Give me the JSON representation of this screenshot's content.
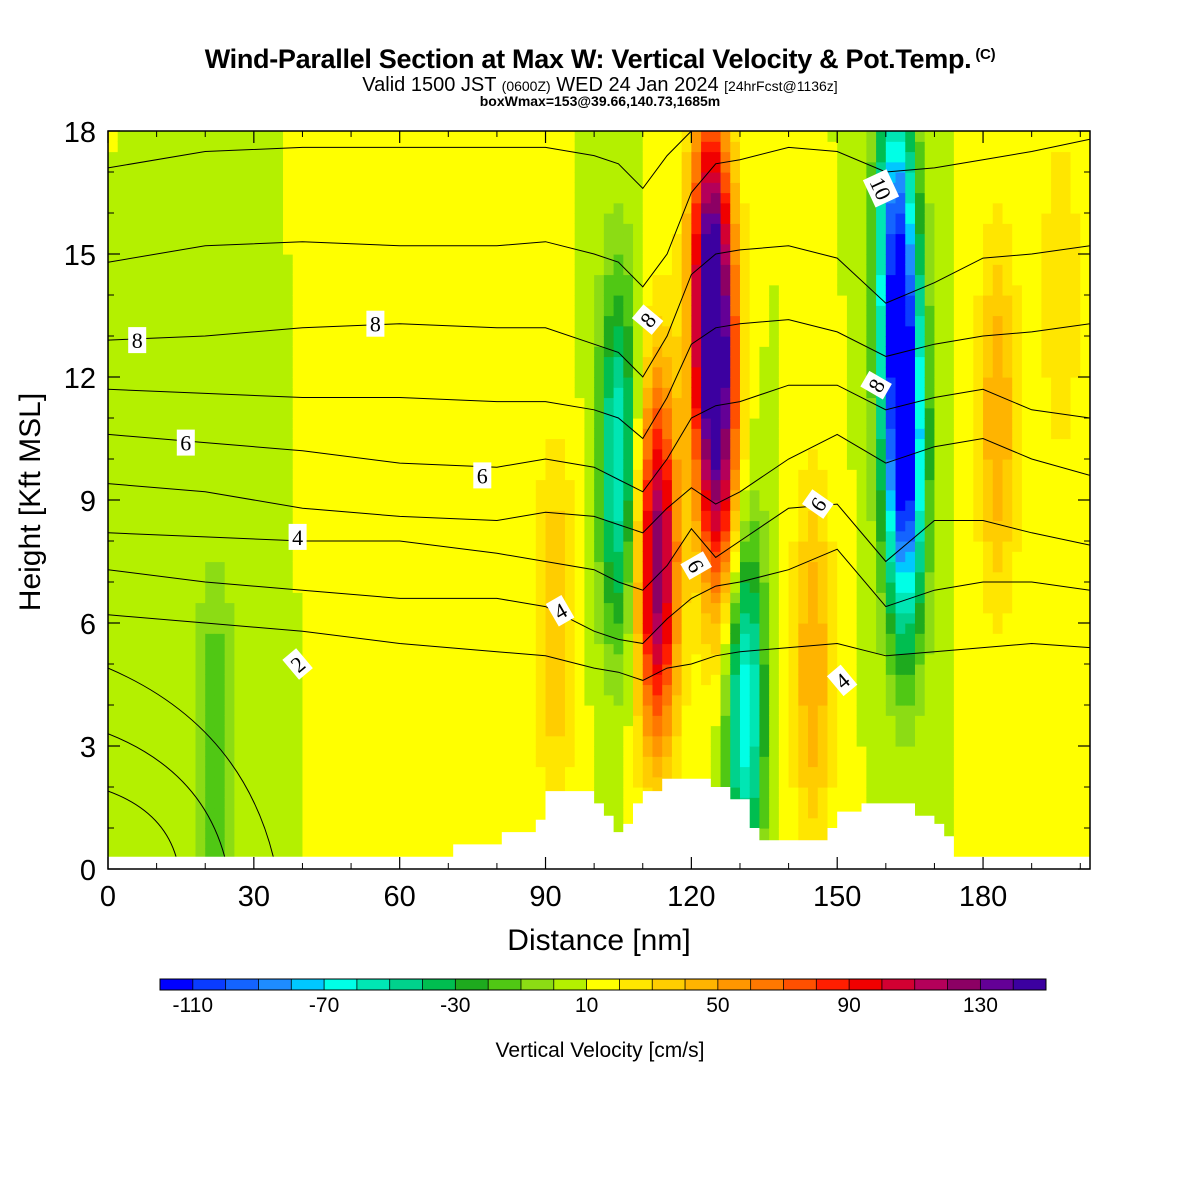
{
  "header": {
    "title": "Wind-Parallel Section at Max W: Vertical Velocity & Pot.Temp.",
    "copyright": "(C)",
    "valid_prefix": "Valid 1500 JST",
    "valid_utc": "(0600Z)",
    "valid_date": "WED 24 Jan 2024",
    "forecast": "[24hrFcst@1136z]",
    "box_info": "boxWmax=153@39.66,140.73,1685m"
  },
  "chart_data": {
    "type": "heatmap",
    "title": "Wind-Parallel Section at Max W: Vertical Velocity & Pot.Temp.",
    "xlabel": "Distance [nm]",
    "ylabel": "Height [Kft MSL]",
    "xlim": [
      0,
      202
    ],
    "ylim": [
      0,
      18
    ],
    "x_ticks": [
      0,
      30,
      60,
      90,
      120,
      150,
      180
    ],
    "y_ticks": [
      0,
      3,
      6,
      9,
      12,
      15,
      18
    ],
    "colorbar": {
      "label": "Vertical Velocity [cm/s]",
      "ticks": [
        -110,
        -70,
        -30,
        10,
        50,
        90,
        130
      ],
      "min": -120,
      "max": 150,
      "step": 10,
      "colors": [
        "#0000ff",
        "#0a3cff",
        "#1464ff",
        "#1e8cff",
        "#00c8ff",
        "#00ffe6",
        "#00e6b4",
        "#00d28c",
        "#00be50",
        "#1eaa1e",
        "#50c814",
        "#8cdc14",
        "#b4f000",
        "#ffff00",
        "#ffe600",
        "#ffcd00",
        "#ffb400",
        "#ff9600",
        "#ff7800",
        "#ff5000",
        "#ff1e00",
        "#f00000",
        "#d20032",
        "#b4005a",
        "#8c0064",
        "#640096",
        "#3c00a0"
      ]
    },
    "w_features": [
      {
        "x": 113,
        "z": 7.5,
        "w": 130
      },
      {
        "x": 124,
        "z": 14,
        "w": 153
      },
      {
        "x": 126,
        "z": 10,
        "w": 90
      },
      {
        "x": 105,
        "z": 10,
        "w": -60
      },
      {
        "x": 131,
        "z": 4,
        "w": -70
      },
      {
        "x": 164,
        "z": 10,
        "w": -110
      },
      {
        "x": 162,
        "z": 15,
        "w": -90
      },
      {
        "x": 92,
        "z": 6,
        "w": 40
      },
      {
        "x": 145,
        "z": 5,
        "w": 50
      },
      {
        "x": 183,
        "z": 11,
        "w": 50
      },
      {
        "x": 196,
        "z": 14,
        "w": 30
      },
      {
        "x": 55,
        "z": 12,
        "w": 20
      },
      {
        "x": 22,
        "z": 3,
        "w": -20
      }
    ],
    "theta_contours": {
      "x": [
        0,
        20,
        40,
        60,
        80,
        90,
        100,
        105,
        110,
        115,
        120,
        125,
        130,
        140,
        150,
        160,
        170,
        180,
        190,
        202
      ],
      "lines": [
        [
          17.1,
          17.5,
          17.6,
          17.6,
          17.6,
          17.6,
          17.4,
          17.2,
          16.6,
          17.4,
          18.0,
          18.0,
          18.0,
          18.0,
          18.0,
          18.0,
          18.0,
          18.0,
          18.0,
          18.0
        ],
        [
          14.8,
          15.2,
          15.3,
          15.2,
          15.2,
          15.3,
          15.0,
          14.8,
          14.2,
          15.0,
          16.5,
          17.2,
          17.3,
          17.6,
          17.5,
          17.0,
          17.1,
          17.3,
          17.5,
          17.8
        ],
        [
          12.9,
          13.0,
          13.2,
          13.3,
          13.2,
          13.2,
          12.8,
          12.6,
          12.0,
          13.0,
          14.5,
          15.0,
          15.1,
          15.2,
          14.9,
          13.8,
          14.3,
          14.9,
          15.0,
          15.2
        ],
        [
          11.7,
          11.6,
          11.5,
          11.5,
          11.4,
          11.4,
          11.2,
          11.0,
          10.5,
          11.5,
          12.8,
          13.2,
          13.3,
          13.4,
          13.1,
          12.5,
          12.8,
          13.0,
          13.1,
          13.3
        ],
        [
          10.6,
          10.4,
          10.2,
          9.9,
          9.8,
          10.0,
          9.8,
          9.5,
          9.2,
          10.0,
          11.0,
          11.3,
          11.4,
          11.8,
          11.8,
          11.2,
          11.5,
          11.7,
          11.2,
          11.0
        ],
        [
          9.4,
          9.2,
          8.8,
          8.6,
          8.5,
          8.7,
          8.6,
          8.4,
          8.2,
          8.8,
          9.3,
          8.9,
          9.2,
          10.0,
          10.6,
          9.9,
          10.3,
          10.5,
          10.0,
          9.6
        ],
        [
          8.2,
          8.1,
          8.0,
          8.0,
          7.7,
          7.5,
          7.3,
          7.0,
          6.8,
          7.4,
          8.3,
          7.6,
          8.0,
          8.8,
          8.9,
          7.5,
          8.5,
          8.5,
          8.2,
          7.9
        ],
        [
          7.3,
          7.0,
          6.8,
          6.6,
          6.6,
          6.4,
          5.8,
          5.6,
          5.5,
          6.1,
          6.6,
          6.9,
          7.0,
          7.3,
          7.8,
          6.4,
          6.8,
          7.0,
          7.0,
          6.8
        ],
        [
          6.2,
          6.0,
          5.8,
          5.5,
          5.3,
          5.2,
          4.9,
          4.8,
          4.6,
          4.9,
          5.0,
          5.2,
          5.3,
          5.4,
          5.5,
          5.2,
          5.3,
          5.4,
          5.5,
          5.4
        ]
      ]
    },
    "terrain": {
      "x": [
        0,
        70,
        71,
        80,
        81,
        88,
        90,
        98,
        100,
        102,
        104,
        106,
        108,
        110,
        114,
        116,
        120,
        124,
        128,
        132,
        134,
        138,
        148,
        150,
        155,
        162,
        166,
        170,
        172,
        174,
        202
      ],
      "z": [
        0.3,
        0.3,
        0.6,
        0.6,
        0.9,
        1.2,
        1.9,
        1.9,
        1.6,
        1.3,
        0.9,
        1.1,
        1.6,
        1.9,
        2.2,
        2.2,
        2.2,
        2.0,
        1.7,
        1.0,
        0.7,
        0.7,
        1.0,
        1.4,
        1.6,
        1.6,
        1.3,
        1.1,
        0.8,
        0.3,
        0.3
      ]
    },
    "contour_labels": [
      {
        "text": "8",
        "x": 6,
        "z": 12.9,
        "angle": 0
      },
      {
        "text": "8",
        "x": 55,
        "z": 13.3,
        "angle": 0
      },
      {
        "text": "6",
        "x": 16,
        "z": 10.4,
        "angle": 0
      },
      {
        "text": "6",
        "x": 77,
        "z": 9.6,
        "angle": 0
      },
      {
        "text": "4",
        "x": 39,
        "z": 8.1,
        "angle": 0
      },
      {
        "text": "4",
        "x": 93,
        "z": 6.3,
        "angle": -30
      },
      {
        "text": "2",
        "x": 39,
        "z": 5.0,
        "angle": -40
      },
      {
        "text": "8",
        "x": 111,
        "z": 13.4,
        "angle": -50
      },
      {
        "text": "6",
        "x": 121,
        "z": 7.4,
        "angle": 60
      },
      {
        "text": "6",
        "x": 146,
        "z": 8.9,
        "angle": -55
      },
      {
        "text": "4",
        "x": 151,
        "z": 4.6,
        "angle": -40
      },
      {
        "text": "10",
        "x": 159,
        "z": 16.6,
        "angle": 65
      },
      {
        "text": "8",
        "x": 158,
        "z": 11.8,
        "angle": -60
      }
    ]
  }
}
